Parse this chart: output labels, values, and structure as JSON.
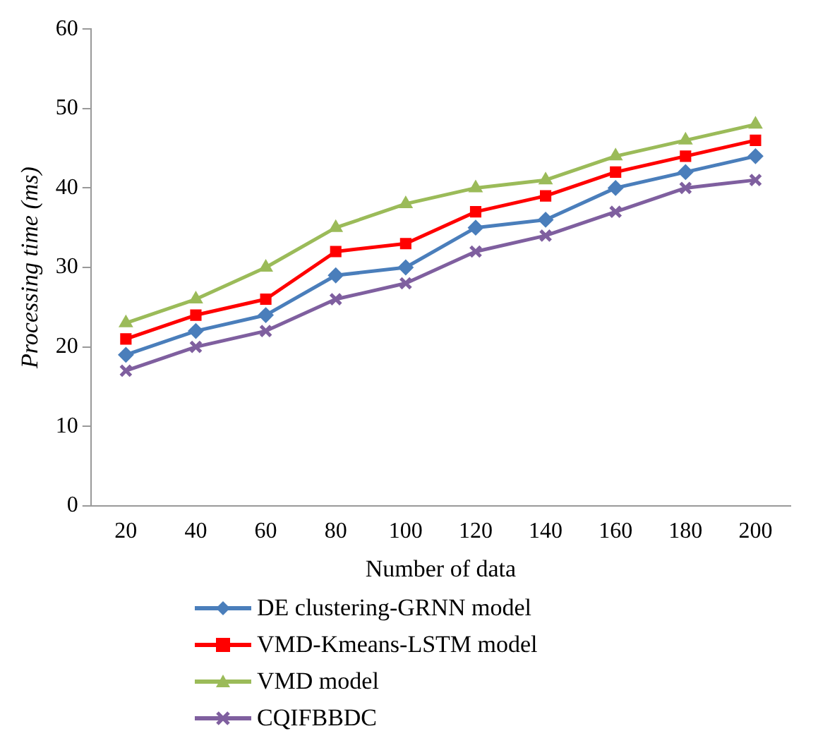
{
  "chart_data": {
    "type": "line",
    "xlabel": "Number of data",
    "ylabel": "Processing time (ms)",
    "categories": [
      "20",
      "40",
      "60",
      "80",
      "100",
      "120",
      "140",
      "160",
      "180",
      "200"
    ],
    "ylim": [
      0,
      60
    ],
    "yticks": [
      0,
      10,
      20,
      30,
      40,
      50,
      60
    ],
    "grid": false,
    "legend": "bottom",
    "line_style": "solid",
    "series": [
      {
        "name": "DE clustering-GRNN model",
        "color": "#4a7ebb",
        "marker": "diamond",
        "values": [
          19,
          22,
          24,
          29,
          30,
          35,
          36,
          40,
          42,
          44
        ]
      },
      {
        "name": "VMD-Kmeans-LSTM model",
        "color": "#ff0000",
        "marker": "square",
        "values": [
          21,
          24,
          26,
          32,
          33,
          37,
          39,
          42,
          44,
          46
        ]
      },
      {
        "name": "VMD model",
        "color": "#9bbb59",
        "marker": "triangle",
        "values": [
          23,
          26,
          30,
          35,
          38,
          40,
          41,
          44,
          46,
          48
        ]
      },
      {
        "name": "CQIFBBDC",
        "color": "#7f5f9f",
        "marker": "cross",
        "values": [
          17,
          20,
          22,
          26,
          28,
          32,
          34,
          37,
          40,
          41
        ]
      }
    ]
  }
}
